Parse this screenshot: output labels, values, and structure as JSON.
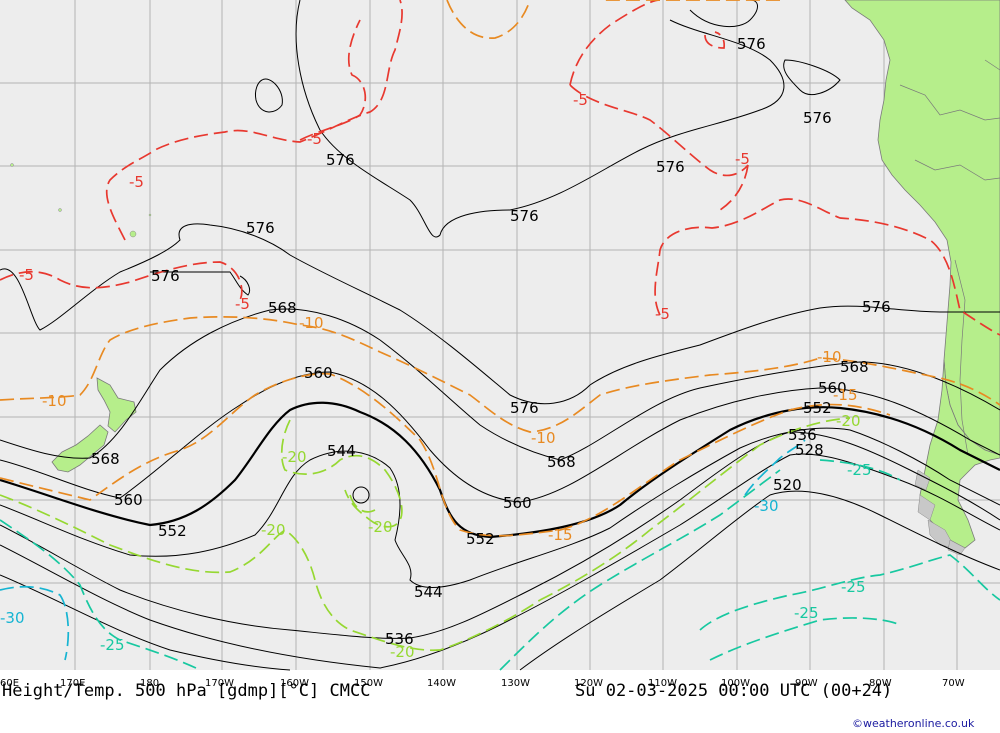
{
  "map": {
    "title": "Height/Temp. 500 hPa [gdmp][°C] CMCC",
    "valid_time": "Su 02-03-2025 00:00 UTC (00+24)",
    "credit": "©weatheronline.co.uk",
    "lon_ticks": [
      "60E",
      "170E",
      "180",
      "170W",
      "160W",
      "150W",
      "140W",
      "130W",
      "120W",
      "110W",
      "100W",
      "90W",
      "80W",
      "70W"
    ],
    "height_labels": [
      "576",
      "576",
      "576",
      "576",
      "576",
      "576",
      "576",
      "576",
      "576",
      "568",
      "568",
      "568",
      "568",
      "560",
      "560",
      "560",
      "560",
      "552",
      "552",
      "552",
      "544",
      "544",
      "536",
      "536",
      "528",
      "520"
    ],
    "temp_labels": [
      "-5",
      "-5",
      "-5",
      "-5",
      "-5",
      "-5",
      "-5",
      "-10",
      "-10",
      "-10",
      "-10",
      "-15",
      "-15",
      "-20",
      "-20",
      "-20",
      "-20",
      "-20",
      "-25",
      "-25",
      "-25",
      "-25",
      "-30",
      "-30"
    ],
    "colors": {
      "ocean": "#ededed",
      "land": "#b6ee8b",
      "grid": "#b4b4b4",
      "height_contour": "#000000",
      "temp_minus5": "#e8382f",
      "temp_minus10": "#e88a22",
      "temp_minus15": "#e88a22",
      "temp_minus20": "#96d832",
      "temp_minus25": "#17c8a0",
      "temp_minus30": "#16b4d2"
    }
  }
}
